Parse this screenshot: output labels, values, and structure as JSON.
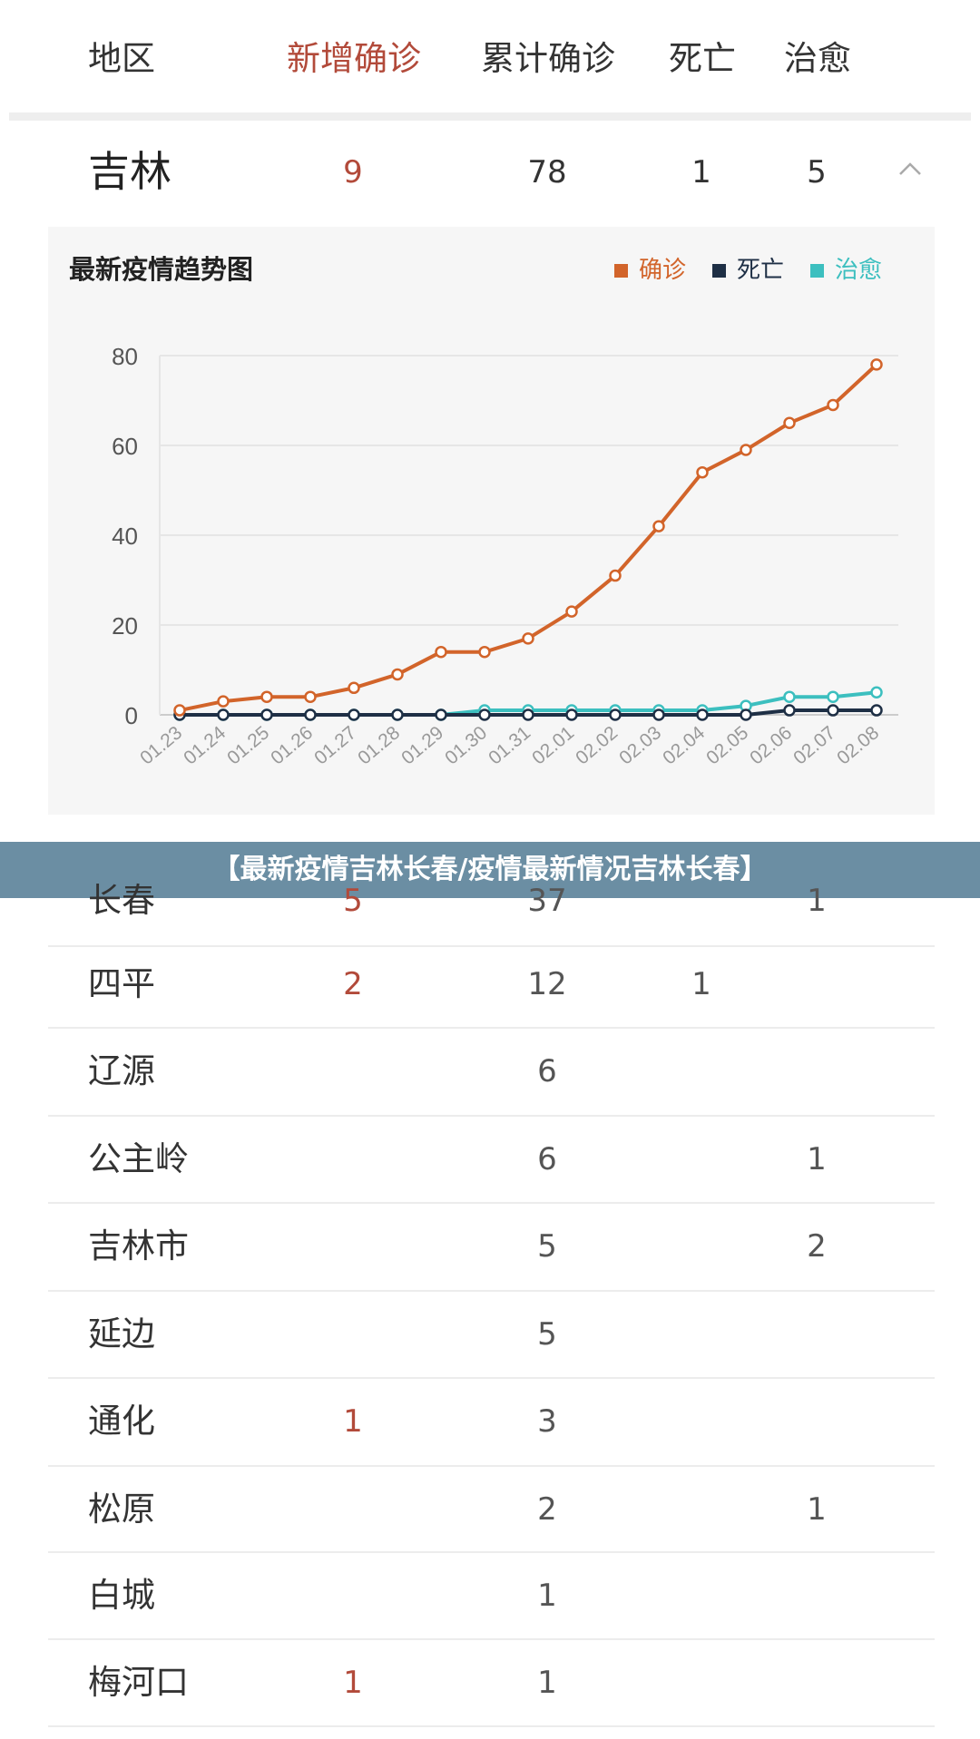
{
  "header": {
    "region": "地区",
    "new_confirmed": "新增确诊",
    "total_confirmed": "累计确诊",
    "deaths": "死亡",
    "recovered": "治愈"
  },
  "province": {
    "name": "吉林",
    "new_confirmed": "9",
    "total_confirmed": "78",
    "deaths": "1",
    "recovered": "5",
    "collapse_icon": "chevron-up-icon"
  },
  "chart_title": "最新疫情趋势图",
  "legend": {
    "confirmed": "确诊",
    "deaths": "死亡",
    "recovered": "治愈"
  },
  "colors": {
    "confirmed": "#d2642a",
    "deaths": "#1e2f45",
    "recovered": "#3cbfbf",
    "red_text": "#b24a3a",
    "banner": "#6b8ea3"
  },
  "chart_data": {
    "type": "line",
    "title": "最新疫情趋势图",
    "xlabel": "",
    "ylabel": "",
    "ylim": [
      0,
      80
    ],
    "yticks": [
      0,
      20,
      40,
      60,
      80
    ],
    "grid": true,
    "legend_position": "top-right",
    "x": [
      "01.23",
      "01.24",
      "01.25",
      "01.26",
      "01.27",
      "01.28",
      "01.29",
      "01.30",
      "01.31",
      "02.01",
      "02.02",
      "02.03",
      "02.04",
      "02.05",
      "02.06",
      "02.07",
      "02.08"
    ],
    "series": [
      {
        "name": "确诊",
        "values": [
          1,
          3,
          4,
          4,
          6,
          9,
          14,
          14,
          17,
          23,
          31,
          42,
          54,
          59,
          65,
          69,
          78
        ]
      },
      {
        "name": "死亡",
        "values": [
          0,
          0,
          0,
          0,
          0,
          0,
          0,
          0,
          0,
          0,
          0,
          0,
          0,
          0,
          1,
          1,
          1
        ]
      },
      {
        "name": "治愈",
        "values": [
          0,
          0,
          0,
          0,
          0,
          0,
          0,
          1,
          1,
          1,
          1,
          1,
          1,
          2,
          4,
          4,
          5
        ]
      }
    ]
  },
  "banner": "【最新疫情吉林长春/疫情最新情况吉林长春】",
  "cities": [
    {
      "name": "长春",
      "new": "5",
      "total": "37",
      "deaths": "",
      "recovered": "1"
    },
    {
      "name": "四平",
      "new": "2",
      "total": "12",
      "deaths": "1",
      "recovered": ""
    },
    {
      "name": "辽源",
      "new": "",
      "total": "6",
      "deaths": "",
      "recovered": ""
    },
    {
      "name": "公主岭",
      "new": "",
      "total": "6",
      "deaths": "",
      "recovered": "1"
    },
    {
      "name": "吉林市",
      "new": "",
      "total": "5",
      "deaths": "",
      "recovered": "2"
    },
    {
      "name": "延边",
      "new": "",
      "total": "5",
      "deaths": "",
      "recovered": ""
    },
    {
      "name": "通化",
      "new": "1",
      "total": "3",
      "deaths": "",
      "recovered": ""
    },
    {
      "name": "松原",
      "new": "",
      "total": "2",
      "deaths": "",
      "recovered": "1"
    },
    {
      "name": "白城",
      "new": "",
      "total": "1",
      "deaths": "",
      "recovered": ""
    },
    {
      "name": "梅河口",
      "new": "1",
      "total": "1",
      "deaths": "",
      "recovered": ""
    }
  ]
}
